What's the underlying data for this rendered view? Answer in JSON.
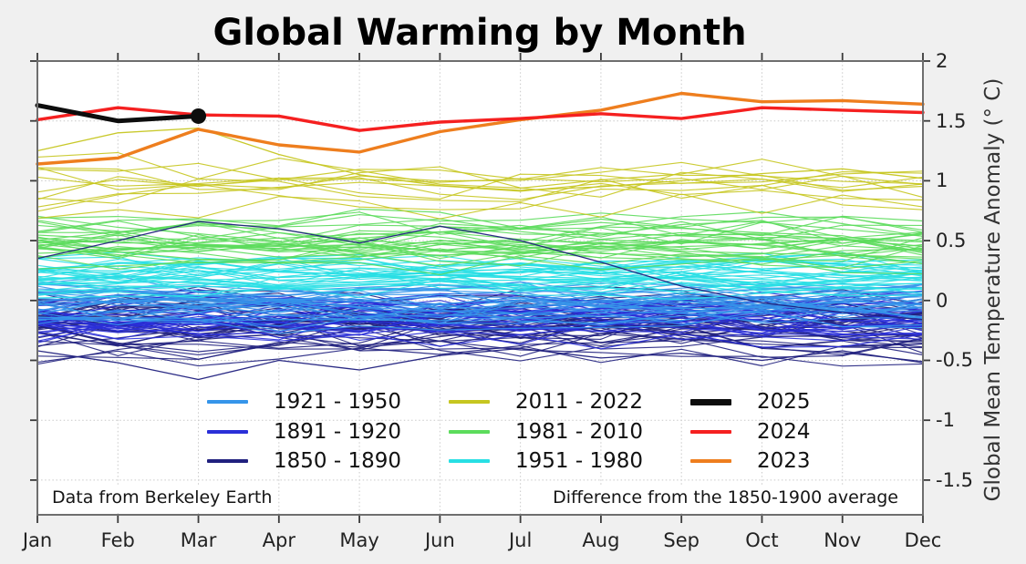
{
  "chart_data": {
    "type": "line",
    "title": "Global Warming by Month",
    "xlabel": "",
    "ylabel": "Global Mean Temperature Anomaly (° C)",
    "months": [
      "Jan",
      "Feb",
      "Mar",
      "Apr",
      "May",
      "Jun",
      "Jul",
      "Aug",
      "Sep",
      "Oct",
      "Nov",
      "Dec"
    ],
    "ylim": [
      -1.79,
      2.0
    ],
    "yticks": [
      {
        "value": 2,
        "label": "2"
      },
      {
        "value": 1.5,
        "label": "1.5"
      },
      {
        "value": 1,
        "label": "1"
      },
      {
        "value": 0.5,
        "label": "0.5"
      },
      {
        "value": 0,
        "label": "0"
      },
      {
        "value": -0.5,
        "label": "-0.5"
      },
      {
        "value": -1,
        "label": "-1"
      },
      {
        "value": -1.5,
        "label": "-1.5"
      }
    ],
    "grid": true,
    "legend_position": "lower center, inside plot",
    "annotations": {
      "left": "Data from Berkeley Earth",
      "right": "Difference from the 1850-1900 average"
    },
    "era_bands": [
      {
        "label": "1850 - 1890",
        "color": "#20207e",
        "count": 40,
        "center": -0.2,
        "spread": 0.24,
        "jitter": 0.145
      },
      {
        "label": "1891 - 1920",
        "color": "#2a2fd8",
        "count": 30,
        "center": -0.16,
        "spread": 0.19,
        "jitter": 0.125
      },
      {
        "label": "1921 - 1950",
        "color": "#3595ea",
        "count": 30,
        "center": -0.03,
        "spread": 0.16,
        "jitter": 0.11
      },
      {
        "label": "1951 - 1980",
        "color": "#28dfe4",
        "count": 30,
        "center": 0.17,
        "spread": 0.14,
        "jitter": 0.1
      },
      {
        "label": "1981 - 2010",
        "color": "#5cdc5c",
        "count": 30,
        "center": 0.5,
        "spread": 0.21,
        "jitter": 0.115
      },
      {
        "label": "2011 - 2022",
        "color": "#c6c620",
        "count": 11,
        "center": 0.95,
        "spread": 0.19,
        "jitter": 0.125
      }
    ],
    "outlier_lines": [
      {
        "era": "1850 - 1890",
        "color": "#20207e",
        "values": [
          0.35,
          0.5,
          0.66,
          0.6,
          0.48,
          0.62,
          0.5,
          0.32,
          0.12,
          -0.02,
          -0.1,
          -0.16
        ]
      },
      {
        "era": "1850 - 1890",
        "color": "#20207e",
        "values": [
          -0.42,
          -0.52,
          -0.66,
          -0.5,
          -0.58,
          -0.46,
          -0.4,
          -0.48,
          -0.44,
          -0.5,
          -0.42,
          -0.52
        ]
      },
      {
        "era": "2011 - 2022",
        "color": "#c6c620",
        "values": [
          1.25,
          1.4,
          1.44,
          1.22,
          1.05,
          0.96,
          0.92,
          0.95,
          1.0,
          1.06,
          1.1,
          1.02
        ]
      }
    ],
    "highlight_series": [
      {
        "name": "2023",
        "color": "#ee7e1e",
        "width": 3.4,
        "end_marker": false,
        "values": [
          1.14,
          1.19,
          1.43,
          1.3,
          1.24,
          1.41,
          1.51,
          1.59,
          1.73,
          1.66,
          1.67,
          1.64
        ]
      },
      {
        "name": "2024",
        "color": "#f52020",
        "width": 3.4,
        "end_marker": false,
        "values": [
          1.51,
          1.61,
          1.55,
          1.54,
          1.42,
          1.49,
          1.52,
          1.56,
          1.52,
          1.61,
          1.59,
          1.57
        ]
      },
      {
        "name": "2025",
        "color": "#0d0d0d",
        "width": 5,
        "end_marker": true,
        "values": [
          1.63,
          1.5,
          1.54
        ]
      }
    ],
    "legend": {
      "columns": [
        {
          "items": [
            {
              "label": "1921 - 1950",
              "color": "#3595ea",
              "thick": false
            },
            {
              "label": "1891 - 1920",
              "color": "#2a2fd8",
              "thick": false
            },
            {
              "label": "1850 - 1890",
              "color": "#20207e",
              "thick": false
            }
          ]
        },
        {
          "items": [
            {
              "label": "2011 - 2022",
              "color": "#c6c620",
              "thick": false
            },
            {
              "label": "1981 - 2010",
              "color": "#5cdc5c",
              "thick": false
            },
            {
              "label": "1951 - 1980",
              "color": "#28dfe4",
              "thick": false
            }
          ]
        },
        {
          "items": [
            {
              "label": "2025",
              "color": "#0d0d0d",
              "thick": true
            },
            {
              "label": "2024",
              "color": "#f52020",
              "thick": false
            },
            {
              "label": "2023",
              "color": "#ee7e1e",
              "thick": false
            }
          ]
        }
      ]
    },
    "colors": {
      "figure_background": "#f0f0f0",
      "plot_background": "#ffffff",
      "grid": "#c9c9c9",
      "border": "#6e6e6e",
      "tick": "#3a3a3a"
    }
  }
}
